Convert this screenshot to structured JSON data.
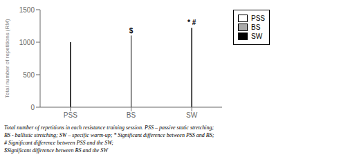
{
  "chart_data": {
    "type": "bar",
    "categories": [
      "PSS",
      "BS",
      "SW"
    ],
    "values": [
      1000,
      1100,
      1220
    ],
    "colors": [
      "white",
      "#aaaaaa",
      "black"
    ],
    "ylabel": "Total number of repetitions (RM)",
    "ylim": [
      0,
      1500
    ],
    "yticks": [
      0,
      500,
      1000,
      1500
    ],
    "grid": false,
    "legend": "right",
    "annotations": [
      {
        "category": "BS",
        "text": "$"
      },
      {
        "category": "SW",
        "text": "* #"
      }
    ],
    "caption": [
      "Total number of repetitions in each resistance training session. PSS – passive static stretching;",
      "BS - ballistic stretching; SW – specific warm-up; * Significant difference between PSS and BS;",
      "# Significant difference between PSS and the SW;",
      "$Significant difference between BS and the SW"
    ]
  }
}
